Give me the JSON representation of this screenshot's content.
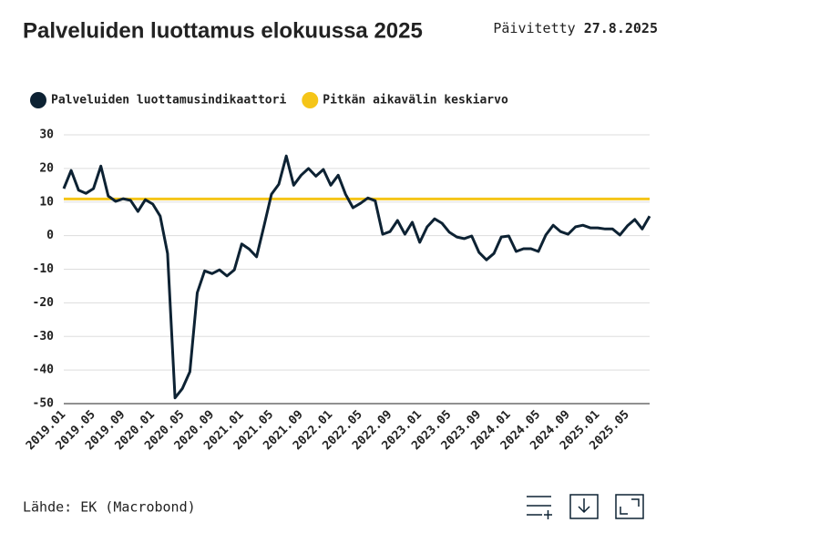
{
  "chart_data": {
    "type": "line",
    "title": "Palveluiden luottamus elokuussa 2025",
    "updated_label": "Päivitetty",
    "updated_date": "27.8.2025",
    "source": "Lähde: EK (Macrobond)",
    "categories": [
      "2019.01",
      null,
      null,
      null,
      "2019.05",
      null,
      null,
      null,
      "2019.09",
      null,
      null,
      null,
      "2020.01",
      null,
      null,
      null,
      "2020.05",
      null,
      null,
      null,
      "2020.09",
      null,
      null,
      null,
      "2021.01",
      null,
      null,
      null,
      "2021.05",
      null,
      null,
      null,
      "2021.09",
      null,
      null,
      null,
      "2022.01",
      null,
      null,
      null,
      "2022.05",
      null,
      null,
      null,
      "2022.09",
      null,
      null,
      null,
      "2023.01",
      null,
      null,
      null,
      "2023.05",
      null,
      null,
      null,
      "2023.09",
      null,
      null,
      null,
      "2024.01",
      null,
      null,
      null,
      "2024.05",
      null,
      null,
      null,
      "2024.09",
      null,
      null,
      null,
      "2025.01",
      null,
      null,
      null,
      "2025.05",
      null,
      null,
      null
    ],
    "series": [
      {
        "name": "Palveluiden luottamusindikaattori",
        "color": "#0d2233",
        "values": [
          14,
          19.4,
          13.5,
          12.6,
          14,
          20.7,
          11.8,
          10.2,
          11,
          10.5,
          7.2,
          10.7,
          9.4,
          5.8,
          -5.3,
          -48.3,
          -45.5,
          -40.5,
          -17,
          -10.5,
          -11.3,
          -10.2,
          -12,
          -10.2,
          -2.5,
          -4,
          -6.3,
          2.9,
          12.3,
          15.3,
          23.7,
          15,
          18,
          20,
          17.7,
          19.7,
          15,
          18,
          12.3,
          8.3,
          9.6,
          11.2,
          10.4,
          0.4,
          1.2,
          4.5,
          0.4,
          4,
          -2,
          2.6,
          5,
          3.7,
          1,
          -0.4,
          -0.9,
          -0.1,
          -5,
          -7.2,
          -5.3,
          -0.4,
          -0.1,
          -4.7,
          -3.9,
          -3.9,
          -4.7,
          0.2,
          3.1,
          1.2,
          0.4,
          2.6,
          3.1,
          2.3,
          2.3,
          2,
          2,
          0.2,
          2.9,
          4.8,
          2,
          5.8
        ]
      },
      {
        "name": "Pitkän aikavälin keskiarvo",
        "color": "#f5c518",
        "values": [
          10.9,
          10.9,
          10.9,
          10.9,
          10.9,
          10.9,
          10.9,
          10.9,
          10.9,
          10.9,
          10.9,
          10.9,
          10.9,
          10.9,
          10.9,
          10.9,
          10.9,
          10.9,
          10.9,
          10.9,
          10.9,
          10.9,
          10.9,
          10.9,
          10.9,
          10.9,
          10.9,
          10.9,
          10.9,
          10.9,
          10.9,
          10.9,
          10.9,
          10.9,
          10.9,
          10.9,
          10.9,
          10.9,
          10.9,
          10.9,
          10.9,
          10.9,
          10.9,
          10.9,
          10.9,
          10.9,
          10.9,
          10.9,
          10.9,
          10.9,
          10.9,
          10.9,
          10.9,
          10.9,
          10.9,
          10.9,
          10.9,
          10.9,
          10.9,
          10.9,
          10.9,
          10.9,
          10.9,
          10.9,
          10.9,
          10.9,
          10.9,
          10.9,
          10.9,
          10.9,
          10.9,
          10.9,
          10.9,
          10.9,
          10.9,
          10.9,
          10.9,
          10.9,
          10.9,
          10.9
        ]
      }
    ],
    "ylim": [
      -50,
      30
    ],
    "yticks": [
      30,
      20,
      10,
      0,
      -10,
      -20,
      -30,
      -40,
      -50
    ],
    "grid": true
  }
}
